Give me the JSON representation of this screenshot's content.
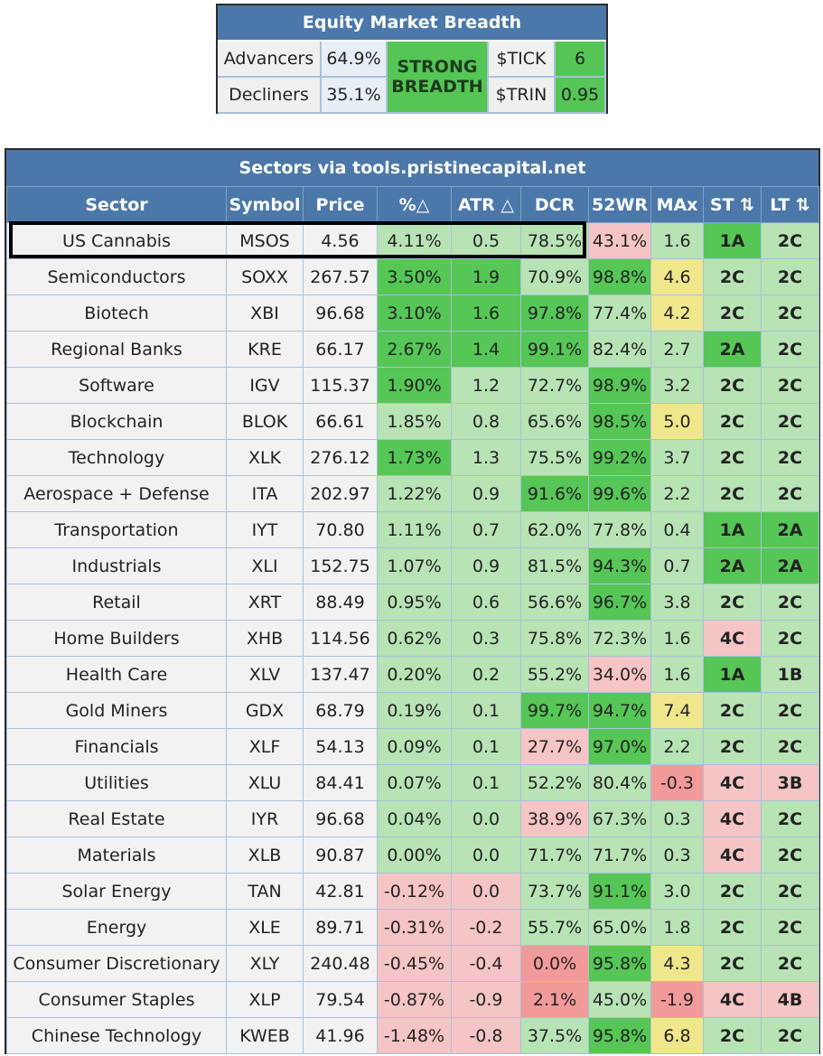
{
  "breadth": {
    "title": "Equity Market Breadth",
    "advancers_label": "Advancers",
    "advancers_value": "64.9%",
    "decliners_label": "Decliners",
    "decliners_value": "35.1%",
    "status_line1": "STRONG",
    "status_line2": "BREADTH",
    "tick_label": "$TICK",
    "tick_value": "6",
    "trin_label": "$TRIN",
    "trin_value": "0.95"
  },
  "sectors": {
    "title": "Sectors via tools.pristinecapital.net",
    "headers": [
      "Sector",
      "Symbol",
      "Price",
      "%△",
      "ATR △",
      "DCR",
      "52WR",
      "MAx",
      "ST ⇅",
      "LT ⇅"
    ],
    "highlighted_row": "US Cannabis",
    "rows": [
      {
        "sector": "US Cannabis",
        "symbol": "MSOS",
        "price": "4.56",
        "pct": "4.11%",
        "atr": "0.5",
        "dcr": "78.5%",
        "wr": "43.1%",
        "max": "1.6",
        "st": "1A",
        "lt": "2C"
      },
      {
        "sector": "Semiconductors",
        "symbol": "SOXX",
        "price": "267.57",
        "pct": "3.50%",
        "atr": "1.9",
        "dcr": "70.9%",
        "wr": "98.8%",
        "max": "4.6",
        "st": "2C",
        "lt": "2C"
      },
      {
        "sector": "Biotech",
        "symbol": "XBI",
        "price": "96.68",
        "pct": "3.10%",
        "atr": "1.6",
        "dcr": "97.8%",
        "wr": "77.4%",
        "max": "4.2",
        "st": "2C",
        "lt": "2C"
      },
      {
        "sector": "Regional Banks",
        "symbol": "KRE",
        "price": "66.17",
        "pct": "2.67%",
        "atr": "1.4",
        "dcr": "99.1%",
        "wr": "82.4%",
        "max": "2.7",
        "st": "2A",
        "lt": "2C"
      },
      {
        "sector": "Software",
        "symbol": "IGV",
        "price": "115.37",
        "pct": "1.90%",
        "atr": "1.2",
        "dcr": "72.7%",
        "wr": "98.9%",
        "max": "3.2",
        "st": "2C",
        "lt": "2C"
      },
      {
        "sector": "Blockchain",
        "symbol": "BLOK",
        "price": "66.61",
        "pct": "1.85%",
        "atr": "0.8",
        "dcr": "65.6%",
        "wr": "98.5%",
        "max": "5.0",
        "st": "2C",
        "lt": "2C"
      },
      {
        "sector": "Technology",
        "symbol": "XLK",
        "price": "276.12",
        "pct": "1.73%",
        "atr": "1.3",
        "dcr": "75.5%",
        "wr": "99.2%",
        "max": "3.7",
        "st": "2C",
        "lt": "2C"
      },
      {
        "sector": "Aerospace + Defense",
        "symbol": "ITA",
        "price": "202.97",
        "pct": "1.22%",
        "atr": "0.9",
        "dcr": "91.6%",
        "wr": "99.6%",
        "max": "2.2",
        "st": "2C",
        "lt": "2C"
      },
      {
        "sector": "Transportation",
        "symbol": "IYT",
        "price": "70.80",
        "pct": "1.11%",
        "atr": "0.7",
        "dcr": "62.0%",
        "wr": "77.8%",
        "max": "0.4",
        "st": "1A",
        "lt": "2A"
      },
      {
        "sector": "Industrials",
        "symbol": "XLI",
        "price": "152.75",
        "pct": "1.07%",
        "atr": "0.9",
        "dcr": "81.5%",
        "wr": "94.3%",
        "max": "0.7",
        "st": "2A",
        "lt": "2A"
      },
      {
        "sector": "Retail",
        "symbol": "XRT",
        "price": "88.49",
        "pct": "0.95%",
        "atr": "0.6",
        "dcr": "56.6%",
        "wr": "96.7%",
        "max": "3.8",
        "st": "2C",
        "lt": "2C"
      },
      {
        "sector": "Home Builders",
        "symbol": "XHB",
        "price": "114.56",
        "pct": "0.62%",
        "atr": "0.3",
        "dcr": "75.8%",
        "wr": "72.3%",
        "max": "1.6",
        "st": "4C",
        "lt": "2C"
      },
      {
        "sector": "Health Care",
        "symbol": "XLV",
        "price": "137.47",
        "pct": "0.20%",
        "atr": "0.2",
        "dcr": "55.2%",
        "wr": "34.0%",
        "max": "1.6",
        "st": "1A",
        "lt": "1B"
      },
      {
        "sector": "Gold Miners",
        "symbol": "GDX",
        "price": "68.79",
        "pct": "0.19%",
        "atr": "0.1",
        "dcr": "99.7%",
        "wr": "94.7%",
        "max": "7.4",
        "st": "2C",
        "lt": "2C"
      },
      {
        "sector": "Financials",
        "symbol": "XLF",
        "price": "54.13",
        "pct": "0.09%",
        "atr": "0.1",
        "dcr": "27.7%",
        "wr": "97.0%",
        "max": "2.2",
        "st": "2C",
        "lt": "2C"
      },
      {
        "sector": "Utilities",
        "symbol": "XLU",
        "price": "84.41",
        "pct": "0.07%",
        "atr": "0.1",
        "dcr": "52.2%",
        "wr": "80.4%",
        "max": "-0.3",
        "st": "4C",
        "lt": "3B"
      },
      {
        "sector": "Real Estate",
        "symbol": "IYR",
        "price": "96.68",
        "pct": "0.04%",
        "atr": "0.0",
        "dcr": "38.9%",
        "wr": "67.3%",
        "max": "0.3",
        "st": "4C",
        "lt": "2C"
      },
      {
        "sector": "Materials",
        "symbol": "XLB",
        "price": "90.87",
        "pct": "0.00%",
        "atr": "0.0",
        "dcr": "71.7%",
        "wr": "71.7%",
        "max": "0.3",
        "st": "4C",
        "lt": "2C"
      },
      {
        "sector": "Solar Energy",
        "symbol": "TAN",
        "price": "42.81",
        "pct": "-0.12%",
        "atr": "0.0",
        "dcr": "73.7%",
        "wr": "91.1%",
        "max": "3.0",
        "st": "2C",
        "lt": "2C"
      },
      {
        "sector": "Energy",
        "symbol": "XLE",
        "price": "89.71",
        "pct": "-0.31%",
        "atr": "-0.2",
        "dcr": "55.7%",
        "wr": "65.0%",
        "max": "1.8",
        "st": "2C",
        "lt": "2C"
      },
      {
        "sector": "Consumer Discretionary",
        "symbol": "XLY",
        "price": "240.48",
        "pct": "-0.45%",
        "atr": "-0.4",
        "dcr": "0.0%",
        "wr": "95.8%",
        "max": "4.3",
        "st": "2C",
        "lt": "2C"
      },
      {
        "sector": "Consumer Staples",
        "symbol": "XLP",
        "price": "79.54",
        "pct": "-0.87%",
        "atr": "-0.9",
        "dcr": "2.1%",
        "wr": "45.0%",
        "max": "-1.9",
        "st": "4C",
        "lt": "4B"
      },
      {
        "sector": "Chinese Technology",
        "symbol": "KWEB",
        "price": "41.96",
        "pct": "-1.48%",
        "atr": "-0.8",
        "dcr": "37.5%",
        "wr": "95.8%",
        "max": "6.8",
        "st": "2C",
        "lt": "2C"
      }
    ]
  }
}
